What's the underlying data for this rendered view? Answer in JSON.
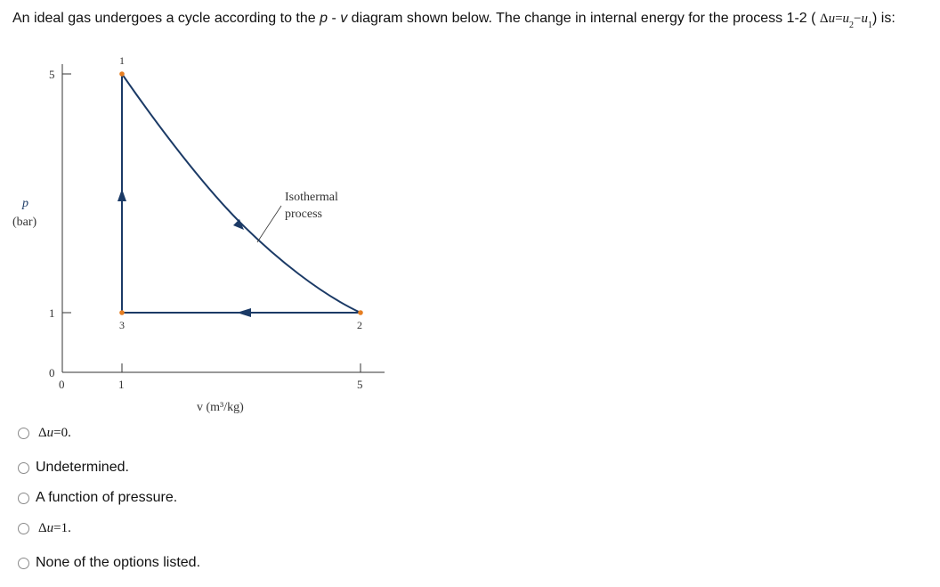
{
  "question": {
    "prefix": "An ideal gas undergoes a cycle according to the ",
    "p": "p",
    "dash": " - ",
    "v": "v",
    "mid": " diagram shown below. The change in internal energy for the process 1-2 ( ",
    "delta": "Δ",
    "u": "u",
    "eq": "=",
    "u2": "u",
    "sub2": "2",
    "minus": "−",
    "u1": "u",
    "sub1": "1",
    "suffix": ") is:"
  },
  "diagram": {
    "y_label_symbol": "p",
    "y_label_unit": "(bar)",
    "x_label": "v (m³/kg)",
    "y_ticks": [
      "5",
      "1",
      "0"
    ],
    "x_ticks": [
      "0",
      "1",
      "5"
    ],
    "state_labels": [
      "1",
      "2",
      "3"
    ],
    "annotation_line1": "Isothermal",
    "annotation_line2": "process",
    "colors": {
      "path": "#1b3a66",
      "point": "#e67e22",
      "axis": "#333333"
    }
  },
  "chart_data": {
    "type": "line",
    "xlabel": "v (m³/kg)",
    "ylabel": "p (bar)",
    "xlim": [
      0,
      5
    ],
    "ylim": [
      0,
      5
    ],
    "points": [
      {
        "label": "1",
        "v": 1,
        "p": 5
      },
      {
        "label": "2",
        "v": 5,
        "p": 1
      },
      {
        "label": "3",
        "v": 1,
        "p": 1
      }
    ],
    "processes": [
      "1-2",
      "2-3",
      "3-1"
    ],
    "annotation": "Isothermal process"
  },
  "options": [
    {
      "kind": "math",
      "delta": "Δ",
      "u": "u",
      "rest": "=0."
    },
    {
      "kind": "text",
      "text": "Undetermined."
    },
    {
      "kind": "text",
      "text": "A function of pressure."
    },
    {
      "kind": "math",
      "delta": "Δ",
      "u": "u",
      "rest": "=1."
    },
    {
      "kind": "text",
      "text": "None of the options listed."
    }
  ]
}
